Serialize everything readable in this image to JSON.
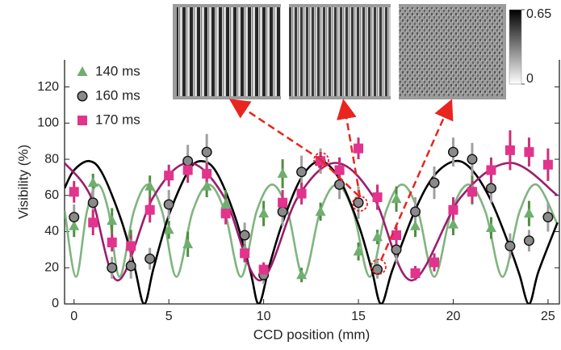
{
  "chart_data": {
    "type": "scatter",
    "xlabel": "CCD position (mm)",
    "ylabel": "Visibility (%)",
    "xlim": [
      -0.5,
      25.6
    ],
    "ylim": [
      0,
      135
    ],
    "xticks": [
      0,
      5,
      10,
      15,
      20,
      25
    ],
    "yticks": [
      0,
      20,
      40,
      60,
      80,
      100,
      120
    ],
    "legend": "upper left",
    "series": [
      {
        "name": "140 ms",
        "color": "#6fae6f",
        "bar_color": "#4f8f3f",
        "marker": "triangle",
        "x": [
          0,
          1,
          2,
          3,
          4,
          5,
          6,
          7,
          8,
          9,
          10,
          11,
          12,
          13,
          14,
          15,
          16,
          17,
          18,
          20,
          21,
          22,
          24
        ],
        "values": [
          43,
          67,
          46,
          33,
          65,
          41,
          33,
          65,
          55,
          30,
          50,
          72,
          16,
          51,
          74,
          29,
          37,
          58,
          43,
          44,
          63,
          42,
          50
        ],
        "errors": [
          6,
          5,
          7,
          8,
          6,
          5,
          7,
          6,
          8,
          6,
          7,
          8,
          4,
          5,
          7,
          5,
          4,
          7,
          6,
          6,
          8,
          6,
          7
        ]
      },
      {
        "name": "160 ms",
        "color": "#8a8a8a",
        "bar_color": "#a0a0a0",
        "marker": "circle",
        "x": [
          0,
          1,
          2,
          3,
          4,
          5,
          6,
          7,
          9,
          10,
          11,
          12,
          13,
          14,
          15,
          16,
          17,
          18,
          19,
          20,
          21,
          22,
          23,
          24,
          25
        ],
        "values": [
          48,
          56,
          20,
          21,
          25,
          55,
          79,
          84,
          38,
          16,
          51,
          73,
          79,
          66,
          56,
          19,
          30,
          51,
          67,
          84,
          80,
          64,
          32,
          35,
          48
        ],
        "errors": [
          7,
          8,
          6,
          7,
          6,
          8,
          9,
          10,
          7,
          5,
          8,
          9,
          7,
          8,
          9,
          5,
          7,
          8,
          9,
          8,
          9,
          8,
          7,
          6,
          8
        ]
      },
      {
        "name": "170 ms",
        "color": "#e2348c",
        "bar_color": "#c8307a",
        "marker": "square",
        "x": [
          0,
          1,
          2,
          3,
          4,
          5,
          6,
          7,
          8,
          9,
          10,
          11,
          12,
          13,
          14,
          15,
          16,
          17,
          18,
          19,
          20,
          21,
          22,
          23,
          24,
          25
        ],
        "values": [
          62,
          45,
          34,
          32,
          52,
          71,
          74,
          72,
          50,
          28,
          19,
          56,
          61,
          79,
          74,
          86,
          59,
          38,
          17,
          23,
          52,
          62,
          74,
          85,
          84,
          77
        ],
        "errors": [
          6,
          7,
          5,
          6,
          7,
          6,
          7,
          6,
          6,
          5,
          4,
          7,
          6,
          5,
          7,
          6,
          7,
          6,
          4,
          5,
          7,
          6,
          7,
          11,
          8,
          9
        ]
      }
    ],
    "fits": [
      {
        "color": "#80b480",
        "x": [
          -0.5,
          0.1,
          0.675,
          1.25,
          1.825,
          2.4,
          3.15,
          3.9,
          4.65,
          5.4,
          6.25,
          7.1,
          7.95,
          8.8,
          9.625,
          10.45,
          11.275,
          12.1,
          12.975,
          13.85,
          14.725,
          15.6,
          16.45,
          17.3,
          18.15,
          19.0,
          19.9,
          20.8,
          21.7,
          22.6,
          23.5,
          24.4,
          25.5
        ],
        "values": [
          52,
          15,
          51,
          66,
          51,
          15,
          51,
          66,
          51,
          15,
          51,
          66,
          51,
          15,
          51,
          66,
          51,
          15,
          51,
          66,
          51,
          15,
          51,
          66,
          51,
          15,
          51,
          66,
          51,
          15,
          51,
          66,
          44
        ]
      },
      {
        "color": "#000000",
        "x": [
          -0.5,
          0,
          0.8,
          1.5,
          2.5,
          3.2,
          3.7,
          4.2,
          5,
          6,
          6.7,
          7.5,
          8.5,
          9.3,
          9.75,
          10.3,
          11,
          12,
          13,
          14,
          15,
          15.7,
          16.2,
          16.8,
          18,
          19,
          20.1,
          21,
          22,
          23,
          23.5,
          24,
          24.5,
          25.5
        ],
        "values": [
          64,
          74,
          79,
          72,
          46,
          20,
          0,
          20,
          49,
          73,
          79,
          73,
          48,
          18,
          0,
          21,
          45,
          70,
          79,
          69,
          44,
          19,
          0,
          19,
          52,
          71,
          79,
          74,
          57,
          31,
          16,
          0,
          18,
          45
        ]
      },
      {
        "color": "#9b1d6e",
        "x": [
          -0.5,
          0.9,
          2.3,
          4.175,
          6.05,
          7.925,
          9.8,
          11.8,
          13.8,
          15.8,
          17.8,
          20.4,
          23,
          25.5
        ],
        "values": [
          78,
          59,
          13,
          59,
          78,
          59,
          13,
          59,
          78,
          59,
          13,
          59,
          78,
          60
        ]
      }
    ],
    "colorbar": {
      "lim": [
        0,
        0.65
      ],
      "ticks": [
        0.65,
        0
      ]
    }
  }
}
